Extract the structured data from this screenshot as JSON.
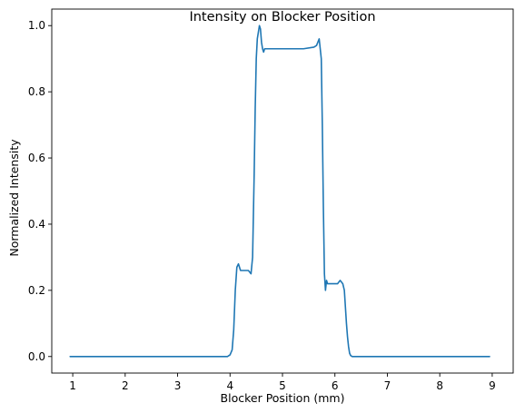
{
  "chart_data": {
    "type": "line",
    "title": "Intensity on Blocker Position",
    "xlabel": "Blocker Position (mm)",
    "ylabel": "Normalized Intensity",
    "xlim": [
      0.6,
      9.4
    ],
    "ylim": [
      -0.05,
      1.05
    ],
    "xticks": [
      1,
      2,
      3,
      4,
      5,
      6,
      7,
      8,
      9
    ],
    "xtick_labels": [
      "1",
      "2",
      "3",
      "4",
      "5",
      "6",
      "7",
      "8",
      "9"
    ],
    "yticks": [
      0.0,
      0.2,
      0.4,
      0.6,
      0.8,
      1.0
    ],
    "ytick_labels": [
      "0.0",
      "0.2",
      "0.4",
      "0.6",
      "0.8",
      "1.0"
    ],
    "grid": false,
    "line_color": "#1f77b4",
    "series": [
      {
        "x": [
          0.95,
          3.85,
          3.95,
          4.0,
          4.04,
          4.07,
          4.1,
          4.13,
          4.16,
          4.2,
          4.25,
          4.3,
          4.35,
          4.4,
          4.43,
          4.46,
          4.48,
          4.5,
          4.52,
          4.54,
          4.56,
          4.58,
          4.6,
          4.62,
          4.64,
          4.66,
          4.7,
          4.8,
          5.0,
          5.2,
          5.4,
          5.6,
          5.65,
          5.7,
          5.74,
          5.76,
          5.78,
          5.8,
          5.82,
          5.84,
          5.86,
          5.88,
          5.9,
          5.95,
          6.0,
          6.05,
          6.1,
          6.15,
          6.18,
          6.2,
          6.22,
          6.24,
          6.26,
          6.28,
          6.3,
          6.33,
          6.38,
          6.5,
          8.95
        ],
        "y": [
          0.0,
          0.0,
          0.0,
          0.005,
          0.02,
          0.08,
          0.2,
          0.27,
          0.28,
          0.26,
          0.26,
          0.26,
          0.26,
          0.25,
          0.3,
          0.55,
          0.75,
          0.9,
          0.96,
          0.98,
          1.0,
          0.99,
          0.95,
          0.93,
          0.92,
          0.93,
          0.93,
          0.93,
          0.93,
          0.93,
          0.93,
          0.935,
          0.94,
          0.96,
          0.9,
          0.7,
          0.45,
          0.25,
          0.2,
          0.23,
          0.22,
          0.22,
          0.22,
          0.22,
          0.22,
          0.22,
          0.23,
          0.22,
          0.2,
          0.15,
          0.1,
          0.06,
          0.03,
          0.01,
          0.003,
          0.0,
          0.0,
          0.0,
          0.0
        ]
      }
    ]
  }
}
